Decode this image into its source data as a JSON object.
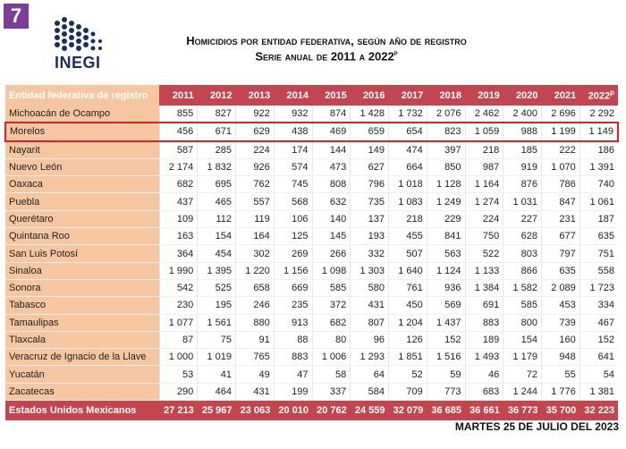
{
  "badge": "7",
  "logo": "INEGI",
  "header": {
    "title": "Homicidios por entidad federativa, según año de registro",
    "subtitle": "Serie anual de 2011 a 2022",
    "subtitle_mark": "p"
  },
  "table": {
    "columns": [
      "Entidad federativa de registro",
      "2011",
      "2012",
      "2013",
      "2014",
      "2015",
      "2016",
      "2017",
      "2018",
      "2019",
      "2020",
      "2021",
      "2022"
    ],
    "last_column_mark": "p",
    "rows": [
      [
        "Michoacán de Ocampo",
        "855",
        "827",
        "922",
        "932",
        "874",
        "1 428",
        "1 732",
        "2 076",
        "2 462",
        "2 400",
        "2 696",
        "2 292"
      ],
      [
        "Morelos",
        "456",
        "671",
        "629",
        "438",
        "469",
        "659",
        "654",
        "823",
        "1 059",
        "988",
        "1 199",
        "1 149"
      ],
      [
        "Nayarit",
        "587",
        "285",
        "224",
        "174",
        "144",
        "149",
        "474",
        "397",
        "218",
        "185",
        "222",
        "186"
      ],
      [
        "Nuevo León",
        "2 174",
        "1 832",
        "926",
        "574",
        "473",
        "627",
        "664",
        "850",
        "987",
        "919",
        "1 070",
        "1 391"
      ],
      [
        "Oaxaca",
        "682",
        "695",
        "762",
        "745",
        "808",
        "796",
        "1 018",
        "1 128",
        "1 164",
        "876",
        "786",
        "740"
      ],
      [
        "Puebla",
        "437",
        "465",
        "557",
        "568",
        "632",
        "735",
        "1 083",
        "1 249",
        "1 274",
        "1 031",
        "847",
        "1 061"
      ],
      [
        "Querétaro",
        "109",
        "112",
        "119",
        "106",
        "140",
        "137",
        "218",
        "229",
        "224",
        "227",
        "231",
        "187"
      ],
      [
        "Quintana Roo",
        "163",
        "154",
        "164",
        "125",
        "145",
        "193",
        "455",
        "841",
        "750",
        "628",
        "677",
        "635"
      ],
      [
        "San Luis Potosí",
        "364",
        "454",
        "302",
        "269",
        "266",
        "332",
        "507",
        "563",
        "522",
        "803",
        "797",
        "751"
      ],
      [
        "Sinaloa",
        "1 990",
        "1 395",
        "1 220",
        "1 156",
        "1 098",
        "1 303",
        "1 640",
        "1 124",
        "1 133",
        "866",
        "635",
        "558"
      ],
      [
        "Sonora",
        "542",
        "525",
        "658",
        "669",
        "585",
        "580",
        "761",
        "936",
        "1 384",
        "1 582",
        "2 089",
        "1 723"
      ],
      [
        "Tabasco",
        "230",
        "195",
        "246",
        "235",
        "372",
        "431",
        "450",
        "569",
        "691",
        "585",
        "453",
        "334"
      ],
      [
        "Tamaulipas",
        "1 077",
        "1 561",
        "880",
        "913",
        "682",
        "807",
        "1 204",
        "1 437",
        "883",
        "800",
        "739",
        "467"
      ],
      [
        "Tlaxcala",
        "87",
        "75",
        "91",
        "88",
        "80",
        "96",
        "126",
        "152",
        "189",
        "154",
        "160",
        "152"
      ],
      [
        "Veracruz de Ignacio de la Llave",
        "1 000",
        "1 019",
        "765",
        "883",
        "1 006",
        "1 293",
        "1 851",
        "1 516",
        "1 493",
        "1 179",
        "948",
        "641"
      ],
      [
        "Yucatán",
        "53",
        "41",
        "49",
        "47",
        "58",
        "64",
        "52",
        "59",
        "46",
        "72",
        "55",
        "54"
      ],
      [
        "Zacatecas",
        "290",
        "464",
        "431",
        "199",
        "337",
        "584",
        "709",
        "773",
        "683",
        "1 244",
        "1 776",
        "1 381"
      ]
    ],
    "total": [
      "Estados Unidos Mexicanos",
      "27 213",
      "25 967",
      "23 063",
      "20 010",
      "20 762",
      "24 559",
      "32 079",
      "36 685",
      "36 661",
      "36 773",
      "35 700",
      "32 223"
    ],
    "highlighted_row": 1
  },
  "date": "MARTES 25 DE JULIO DEL 2023"
}
